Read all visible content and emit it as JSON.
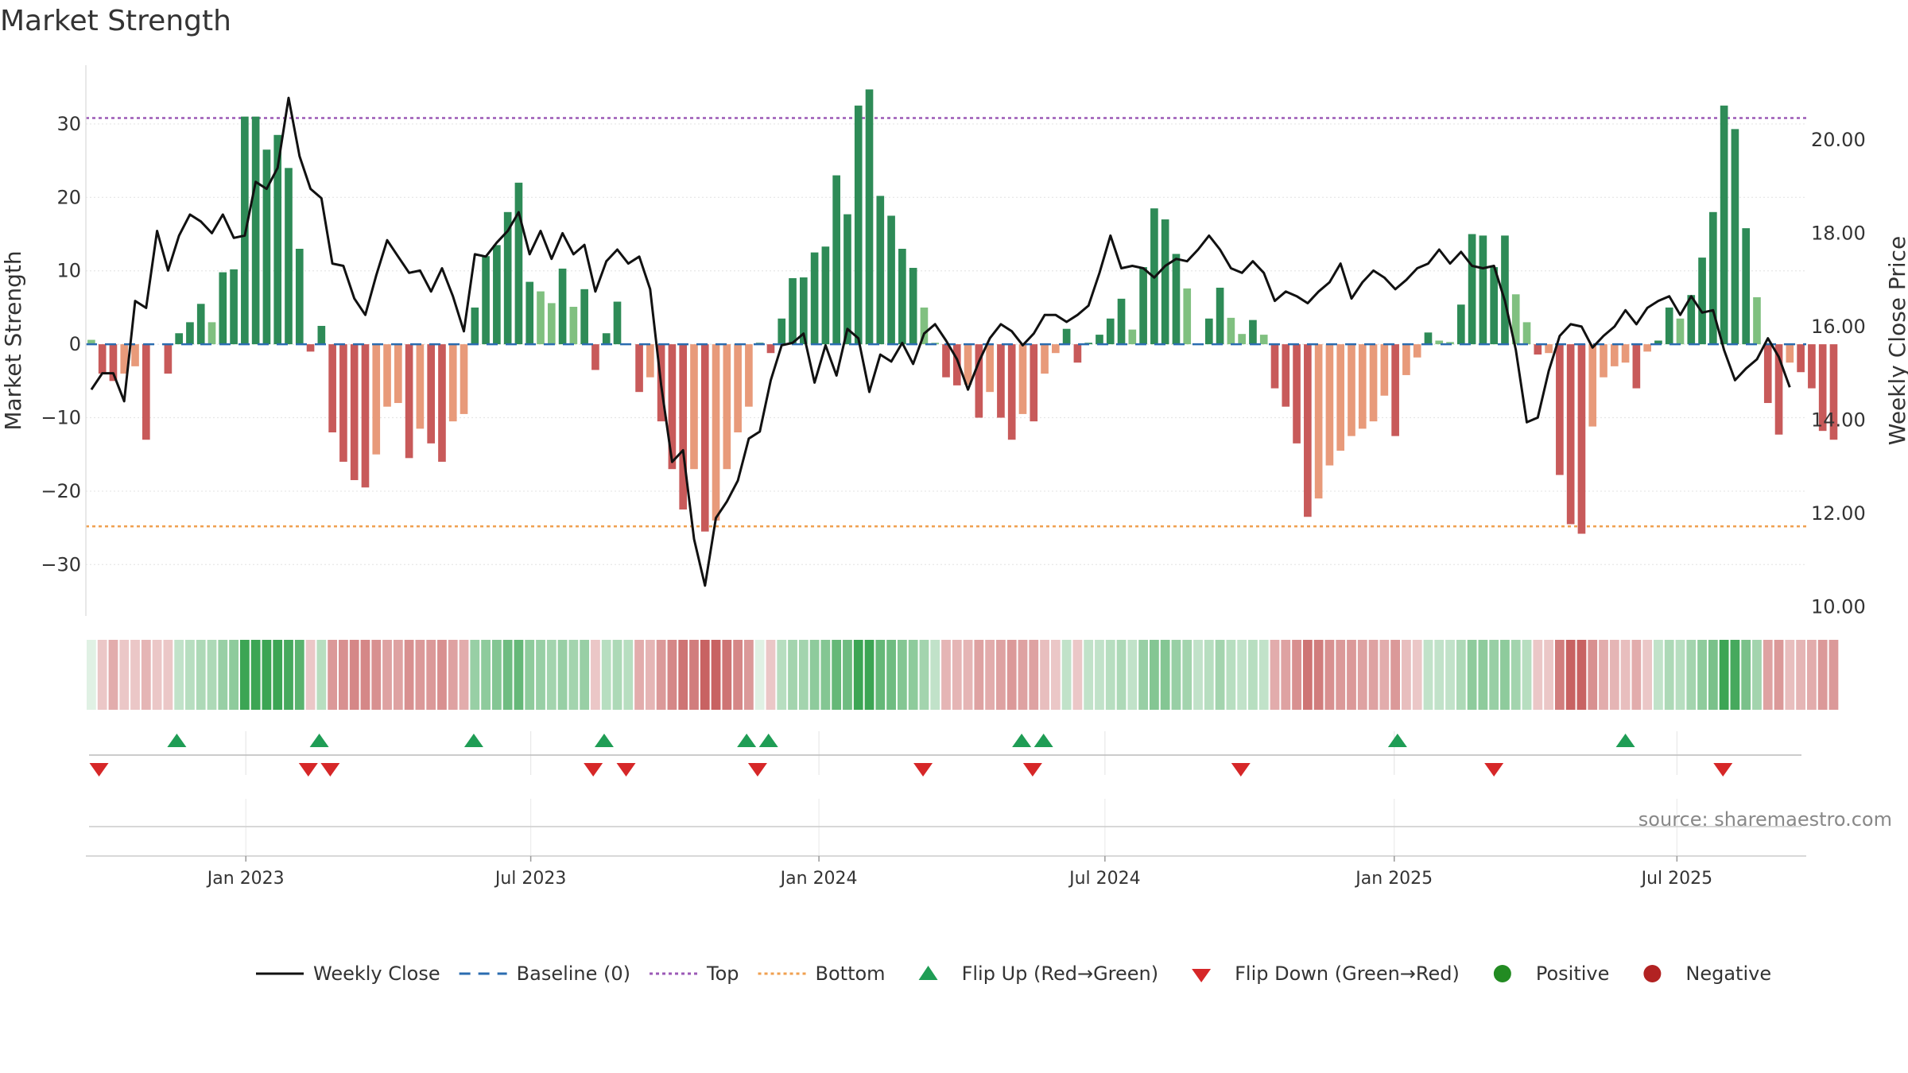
{
  "page": {
    "title": "Market Strength"
  },
  "colors": {
    "pos_dark": "#2e8b57",
    "pos_light": "#80c080",
    "neg_dark": "#c85a5a",
    "neg_light": "#e89a7a",
    "close_line": "#111111",
    "baseline": "#2b6cb0",
    "top": "#9b59b6",
    "bottom": "#f0a050",
    "flip_up": "#1f9d55",
    "flip_down": "#d62728",
    "positive": "#228b22",
    "negative": "#b22222"
  },
  "chart_data": {
    "type": "bar",
    "title": "Market Strength",
    "ylabel": "Market Strength",
    "y2label": "Weekly Close Price",
    "ylim": [
      -37,
      38
    ],
    "y2lim": [
      9.8,
      21.6
    ],
    "yticks": [
      30,
      20,
      10,
      0,
      -10,
      -20,
      -30
    ],
    "ytick_labels": [
      "30",
      "20",
      "10",
      "0",
      "−10",
      "−20",
      "−30"
    ],
    "y2ticks": [
      20,
      18,
      16,
      14,
      12,
      10
    ],
    "y2tick_labels": [
      "20.00",
      "18.00",
      "16.00",
      "14.00",
      "12.00",
      "10.00"
    ],
    "x_range": [
      0,
      157
    ],
    "xticks": [
      {
        "label": "Jan 2023",
        "x": 14.6
      },
      {
        "label": "Jul 2023",
        "x": 40.6
      },
      {
        "label": "Jan 2024",
        "x": 66.9
      },
      {
        "label": "Jul 2024",
        "x": 93.0
      },
      {
        "label": "Jan 2025",
        "x": 119.4
      },
      {
        "label": "Jul 2025",
        "x": 145.2
      }
    ],
    "top_level": 30.8,
    "bottom_level": -24.8,
    "baseline_level": 0,
    "strength": [
      0.6,
      -4,
      -5,
      -4,
      -3,
      -13,
      0,
      -4,
      1.5,
      3,
      5.5,
      3,
      9.8,
      10.2,
      31,
      31,
      26.5,
      28.5,
      24,
      13,
      -1,
      2.5,
      -12,
      -16,
      -18.5,
      -19.5,
      -15,
      -8.5,
      -8,
      -15.5,
      -11.5,
      -13.5,
      -16,
      -10.5,
      -9.5,
      5,
      12,
      13.5,
      18,
      22,
      8.5,
      7.2,
      5.6,
      10.3,
      5.1,
      7.5,
      -3.5,
      1.5,
      5.8,
      0,
      -6.5,
      -4.5,
      -10.5,
      -17,
      -22.5,
      -17,
      -25.5,
      -24,
      -17,
      -12,
      -8.5,
      0.2,
      -1.2,
      3.5,
      9,
      9.1,
      12.5,
      13.3,
      23,
      17.7,
      32.5,
      34.7,
      20.2,
      17.5,
      13,
      10.4,
      5,
      0.2,
      -4.5,
      -5.6,
      -5.5,
      -10,
      -6.5,
      -10,
      -13,
      -9.5,
      -10.5,
      -4,
      -1.2,
      2.1,
      -2.5,
      0.2,
      1.3,
      3.5,
      6.2,
      2,
      10.5,
      18.5,
      17,
      12.3,
      7.6,
      0,
      3.5,
      7.7,
      3.6,
      1.4,
      3.3,
      1.3,
      -6,
      -8.5,
      -13.5,
      -23.5,
      -21,
      -16.5,
      -14.5,
      -12.5,
      -11.5,
      -10.5,
      -7,
      -12.5,
      -4.2,
      -1.8,
      1.6,
      0.5,
      0.3,
      5.4,
      15,
      14.8,
      10.5,
      14.8,
      6.8,
      3,
      -1.4,
      -1.2,
      -17.8,
      -24.5,
      -25.8,
      -11.2,
      -4.5,
      -3,
      -2.5,
      -6,
      -1,
      0.5,
      5,
      3.5,
      6.7,
      11.8,
      18,
      32.5,
      29.3,
      15.8,
      6.4,
      -8,
      -12.3,
      -2.5,
      -3.8,
      -6,
      -11.8,
      -13
    ],
    "close": [
      14.65,
      15.0,
      15.0,
      14.4,
      16.55,
      16.4,
      18.05,
      17.2,
      17.95,
      18.4,
      18.25,
      18.0,
      18.4,
      17.9,
      17.95,
      19.1,
      18.95,
      19.4,
      20.9,
      19.65,
      18.95,
      18.75,
      17.35,
      17.3,
      16.6,
      16.25,
      17.1,
      17.85,
      17.5,
      17.15,
      17.2,
      16.75,
      17.25,
      16.65,
      15.9,
      17.55,
      17.5,
      17.8,
      18.05,
      18.45,
      17.55,
      18.05,
      17.45,
      18.0,
      17.55,
      17.75,
      16.75,
      17.4,
      17.65,
      17.35,
      17.5,
      16.8,
      14.75,
      13.1,
      13.35,
      11.45,
      10.45,
      11.9,
      12.25,
      12.7,
      13.6,
      13.75,
      14.85,
      15.6,
      15.65,
      15.85,
      14.8,
      15.6,
      14.95,
      15.95,
      15.75,
      14.6,
      15.4,
      15.25,
      15.65,
      15.2,
      15.85,
      16.05,
      15.7,
      15.3,
      14.65,
      15.25,
      15.75,
      16.05,
      15.9,
      15.6,
      15.85,
      16.25,
      16.25,
      16.1,
      16.25,
      16.45,
      17.15,
      17.95,
      17.25,
      17.3,
      17.25,
      17.05,
      17.3,
      17.45,
      17.4,
      17.65,
      17.95,
      17.65,
      17.25,
      17.15,
      17.4,
      17.15,
      16.55,
      16.75,
      16.65,
      16.5,
      16.75,
      16.95,
      17.35,
      16.6,
      16.95,
      17.2,
      17.05,
      16.8,
      17.0,
      17.25,
      17.35,
      17.65,
      17.35,
      17.6,
      17.3,
      17.25,
      17.3,
      16.55,
      15.5,
      13.95,
      14.05,
      15.05,
      15.8,
      16.05,
      16.0,
      15.55,
      15.8,
      16.0,
      16.35,
      16.05,
      16.4,
      16.55,
      16.65,
      16.25,
      16.65,
      16.3,
      16.35,
      15.5,
      14.85,
      15.1,
      15.3,
      15.75,
      15.35,
      14.7
    ],
    "weekly_tone": [
      0.15,
      -0.3,
      -0.45,
      -0.3,
      -0.3,
      -0.4,
      -0.3,
      -0.3,
      0.3,
      0.35,
      0.4,
      0.4,
      0.5,
      0.55,
      0.95,
      0.95,
      0.95,
      0.95,
      0.9,
      0.8,
      -0.3,
      0.35,
      -0.55,
      -0.6,
      -0.65,
      -0.65,
      -0.6,
      -0.5,
      -0.5,
      -0.6,
      -0.55,
      -0.55,
      -0.6,
      -0.5,
      -0.45,
      0.5,
      0.55,
      0.6,
      0.7,
      0.75,
      0.55,
      0.5,
      0.45,
      0.5,
      0.45,
      0.5,
      -0.3,
      0.35,
      0.4,
      0.35,
      -0.45,
      -0.4,
      -0.55,
      -0.65,
      -0.75,
      -0.7,
      -0.85,
      -0.85,
      -0.75,
      -0.65,
      -0.55,
      0.15,
      -0.3,
      0.35,
      0.45,
      0.45,
      0.55,
      0.6,
      0.75,
      0.7,
      0.95,
      0.95,
      0.75,
      0.7,
      0.6,
      0.55,
      0.45,
      0.3,
      -0.4,
      -0.4,
      -0.4,
      -0.5,
      -0.45,
      -0.5,
      -0.55,
      -0.5,
      -0.5,
      -0.35,
      -0.3,
      0.3,
      -0.3,
      0.3,
      0.3,
      0.35,
      0.4,
      0.3,
      0.5,
      0.6,
      0.6,
      0.5,
      0.45,
      0.3,
      0.35,
      0.45,
      0.35,
      0.3,
      0.35,
      0.3,
      -0.45,
      -0.5,
      -0.6,
      -0.75,
      -0.7,
      -0.6,
      -0.55,
      -0.55,
      -0.5,
      -0.5,
      -0.45,
      -0.55,
      -0.35,
      -0.3,
      0.3,
      0.3,
      0.3,
      0.4,
      0.55,
      0.55,
      0.5,
      0.55,
      0.45,
      0.35,
      -0.3,
      -0.3,
      -0.7,
      -0.85,
      -0.85,
      -0.6,
      -0.45,
      -0.4,
      -0.35,
      -0.45,
      -0.3,
      0.3,
      0.4,
      0.35,
      0.45,
      0.55,
      0.65,
      0.95,
      0.9,
      0.65,
      0.45,
      -0.5,
      -0.55,
      -0.35,
      -0.4,
      -0.45,
      -0.55,
      -0.55
    ],
    "flip_up_x": [
      8.3,
      21.3,
      35.4,
      47.3,
      60.3,
      62.3,
      85.4,
      87.4,
      119.7,
      140.5
    ],
    "flip_down_x": [
      1.2,
      20.3,
      22.3,
      46.3,
      49.3,
      61.3,
      76.4,
      86.4,
      105.4,
      128.5,
      149.4
    ],
    "legend": [
      {
        "key": "close",
        "label": "Weekly Close"
      },
      {
        "key": "baseline",
        "label": "Baseline (0)"
      },
      {
        "key": "top",
        "label": "Top"
      },
      {
        "key": "bottom",
        "label": "Bottom"
      },
      {
        "key": "flip_up",
        "label": "Flip Up (Red→Green)"
      },
      {
        "key": "flip_down",
        "label": "Flip Down (Green→Red)"
      },
      {
        "key": "positive",
        "label": "Positive"
      },
      {
        "key": "negative",
        "label": "Negative"
      }
    ],
    "source": "source: sharemaestro.com"
  }
}
